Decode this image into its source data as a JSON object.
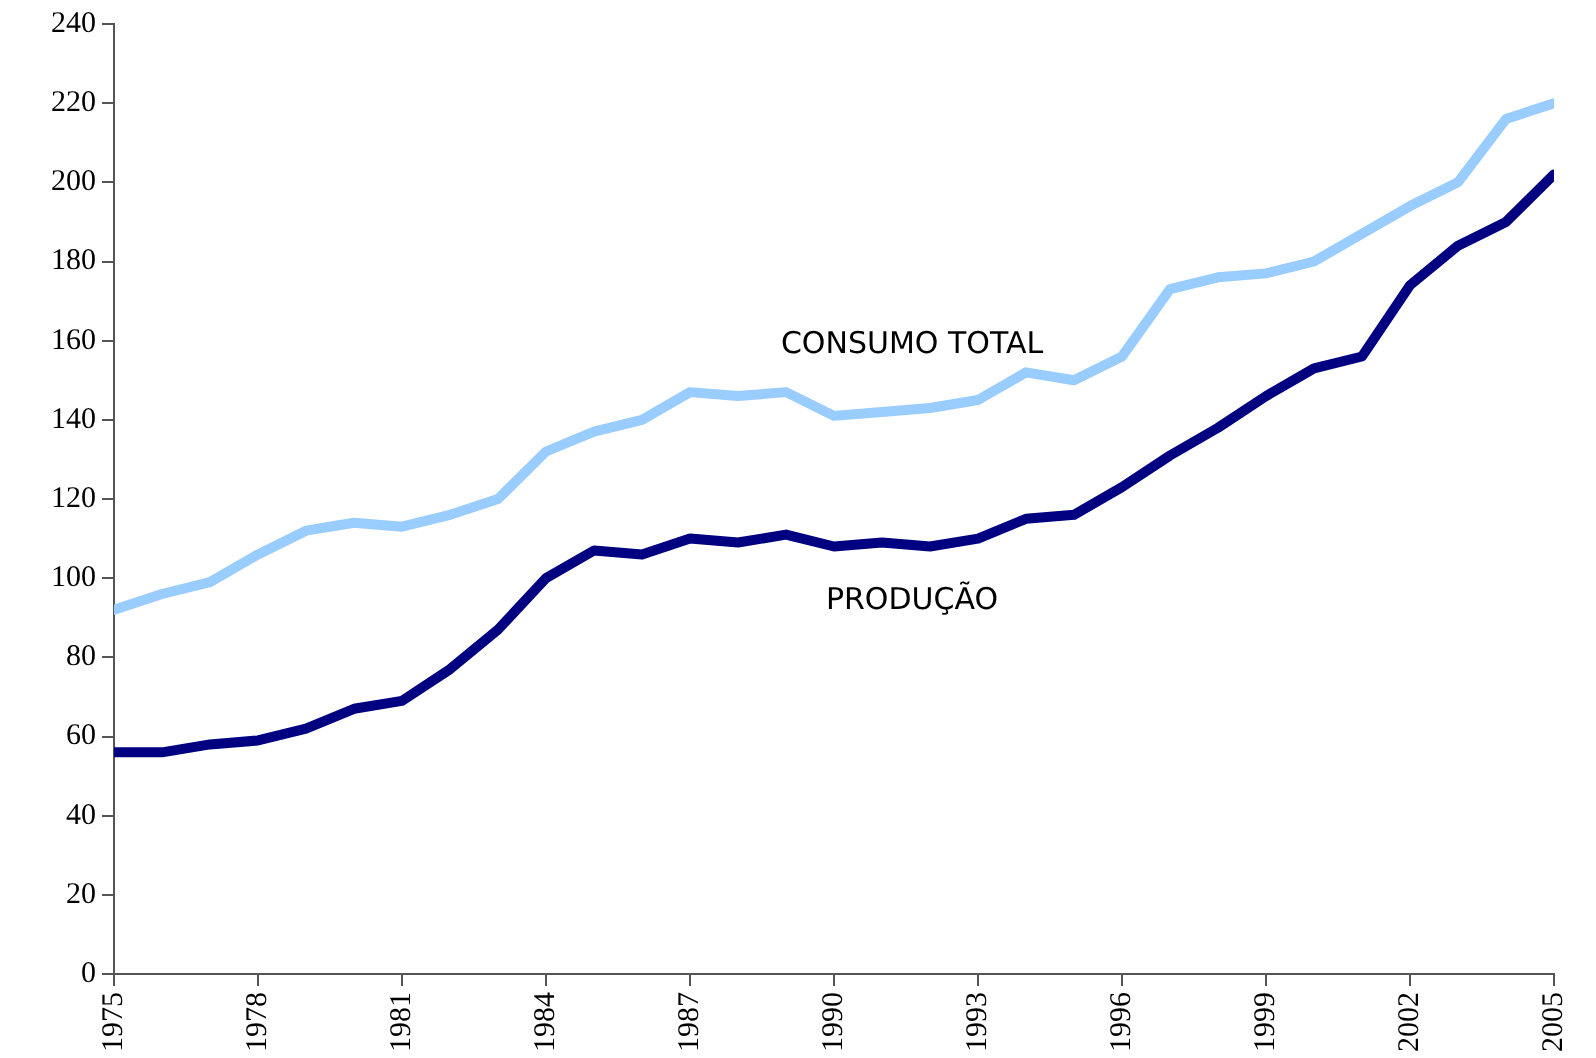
{
  "chart_data": {
    "type": "line",
    "x": [
      1975,
      1976,
      1977,
      1978,
      1979,
      1980,
      1981,
      1982,
      1983,
      1984,
      1985,
      1986,
      1987,
      1988,
      1989,
      1990,
      1991,
      1992,
      1993,
      1994,
      1995,
      1996,
      1997,
      1998,
      1999,
      2000,
      2001,
      2002,
      2003,
      2004,
      2005
    ],
    "series": [
      {
        "name": "CONSUMO TOTAL",
        "color": "#99ccff",
        "values": [
          92,
          96,
          99,
          106,
          112,
          114,
          113,
          116,
          120,
          132,
          137,
          140,
          147,
          146,
          147,
          141,
          142,
          143,
          145,
          152,
          150,
          156,
          173,
          176,
          177,
          180,
          187,
          194,
          200,
          216,
          220
        ]
      },
      {
        "name": "PRODUÇÃO",
        "color": "#000080",
        "values": [
          56,
          56,
          58,
          59,
          62,
          67,
          69,
          77,
          87,
          100,
          107,
          106,
          110,
          109,
          111,
          108,
          109,
          108,
          110,
          115,
          116,
          123,
          131,
          138,
          146,
          153,
          156,
          174,
          184,
          190,
          202
        ]
      }
    ],
    "xlim": [
      1975,
      2005
    ],
    "xticks": [
      1975,
      1978,
      1981,
      1984,
      1987,
      1990,
      1993,
      1996,
      1999,
      2002,
      2005
    ],
    "ylim": [
      0,
      240
    ],
    "yticks": [
      0,
      20,
      40,
      60,
      80,
      100,
      120,
      140,
      160,
      180,
      200,
      220,
      240
    ],
    "grid": false,
    "legend": false,
    "marker": "none",
    "line_style": "solid"
  }
}
